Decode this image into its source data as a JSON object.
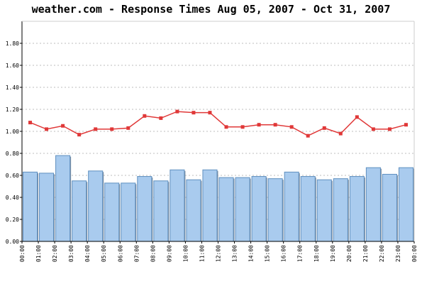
{
  "chart_data": {
    "type": "bar",
    "title": "weather.com - Response Times Aug 05, 2007 - Oct 31, 2007",
    "xlabel": "",
    "ylabel": "",
    "ylim": [
      0,
      2.0
    ],
    "y_ticks": [
      "0.00",
      "0.20",
      "0.40",
      "0.60",
      "0.80",
      "1.00",
      "1.20",
      "1.40",
      "1.60",
      "1.80"
    ],
    "x_ticks": [
      "00:00",
      "01:00",
      "02:00",
      "03:00",
      "04:00",
      "05:00",
      "06:00",
      "07:00",
      "08:00",
      "09:00",
      "10:00",
      "11:00",
      "12:00",
      "13:00",
      "14:00",
      "15:00",
      "16:00",
      "17:00",
      "18:00",
      "19:00",
      "20:00",
      "21:00",
      "22:00",
      "23:00",
      "00:00"
    ],
    "grid": true,
    "legend": "none",
    "series": [
      {
        "type": "bar",
        "color": "#a9cbee",
        "values": [
          0.63,
          0.62,
          0.78,
          0.55,
          0.64,
          0.53,
          0.53,
          0.59,
          0.55,
          0.65,
          0.56,
          0.65,
          0.58,
          0.58,
          0.59,
          0.57,
          0.63,
          0.59,
          0.56,
          0.57,
          0.59,
          0.67,
          0.61,
          0.67
        ]
      },
      {
        "type": "line",
        "color": "#e03838",
        "values": [
          1.08,
          1.02,
          1.05,
          0.97,
          1.02,
          1.02,
          1.03,
          1.14,
          1.12,
          1.18,
          1.17,
          1.17,
          1.04,
          1.04,
          1.06,
          1.06,
          1.04,
          0.96,
          1.03,
          0.98,
          1.13,
          1.02,
          1.02,
          1.06
        ]
      }
    ]
  }
}
